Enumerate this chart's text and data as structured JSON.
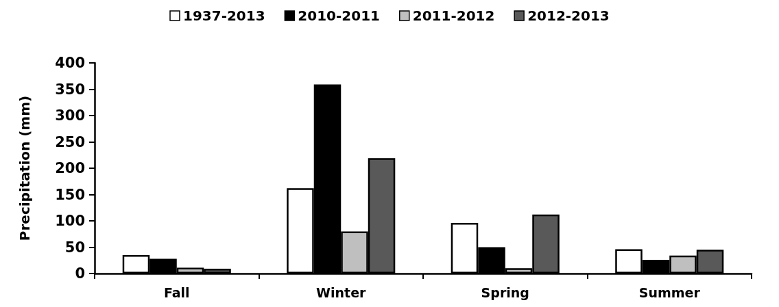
{
  "chart_data": {
    "type": "bar",
    "ylabel": "Precipitation (mm)",
    "categories": [
      "Fall",
      "Winter",
      "Spring",
      "Summer"
    ],
    "series": [
      {
        "name": "1937-2013",
        "color": "#ffffff",
        "values": [
          35,
          162,
          96,
          46
        ]
      },
      {
        "name": "2010-2011",
        "color": "#000000",
        "values": [
          28,
          359,
          50,
          26
        ]
      },
      {
        "name": "2011-2012",
        "color": "#bfbfbf",
        "values": [
          11,
          80,
          10,
          34
        ]
      },
      {
        "name": "2012-2013",
        "color": "#595959",
        "values": [
          9,
          219,
          112,
          45
        ]
      }
    ],
    "ylim": [
      0,
      400
    ],
    "yticks": [
      0,
      50,
      100,
      150,
      200,
      250,
      300,
      350,
      400
    ],
    "grid": false,
    "legend": "top"
  }
}
